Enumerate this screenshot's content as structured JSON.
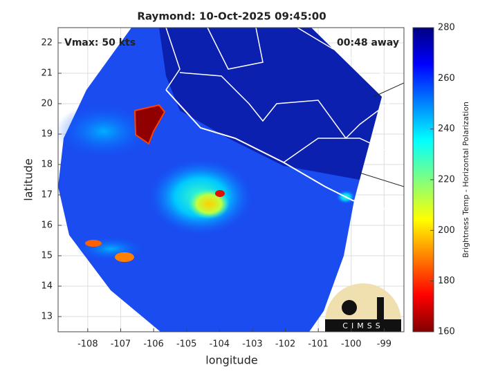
{
  "chart_data": {
    "type": "image",
    "title": "Raymond: 10-Oct-2025 09:45:00",
    "annotations": [
      "Vmax: 50 kts",
      "00:48 away"
    ],
    "x_label": "longitude",
    "y_label": "latitude",
    "xlim": [
      -108.9,
      -98.4
    ],
    "ylim": [
      12.5,
      22.5
    ],
    "xticks": [
      -108,
      -107,
      -106,
      -105,
      -104,
      -103,
      -102,
      -101,
      -100,
      -99
    ],
    "yticks": [
      13,
      14,
      15,
      16,
      17,
      18,
      19,
      20,
      21,
      22
    ],
    "grid": true,
    "colorbar": {
      "label": "Brightness Temp - Horizontal Polarization",
      "lim": [
        160,
        280
      ],
      "ticks": [
        160,
        180,
        200,
        220,
        240,
        260,
        280
      ]
    },
    "logo": "CIMSS"
  }
}
